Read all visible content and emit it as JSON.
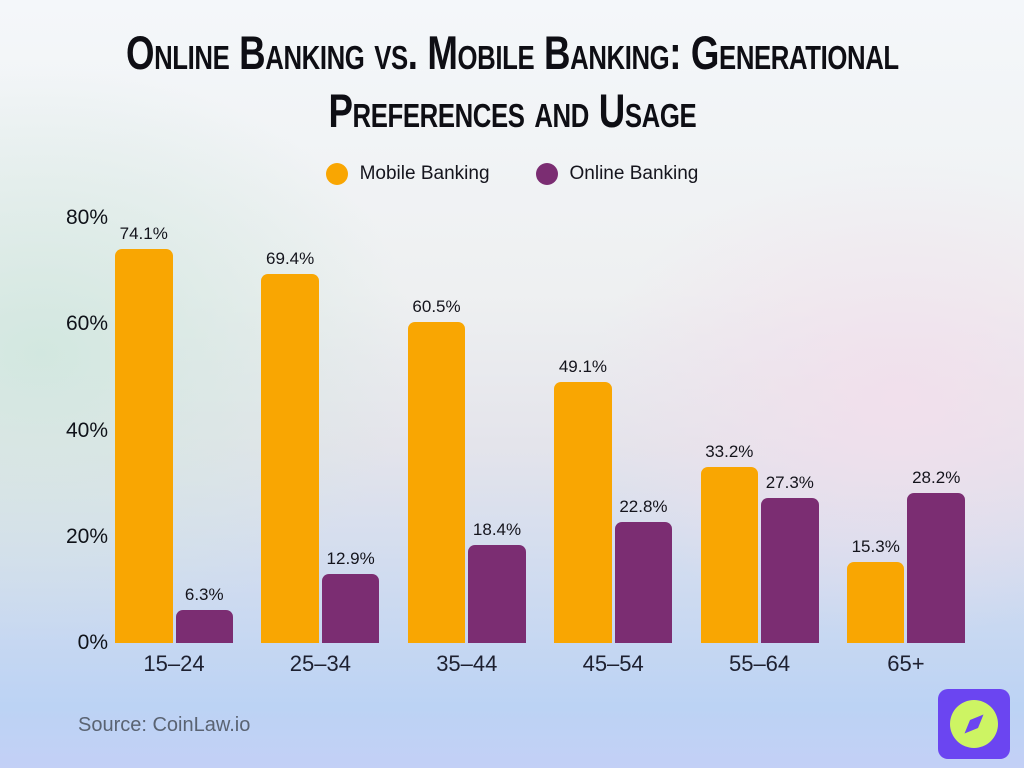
{
  "title": "Online Banking vs. Mobile Banking: Generational\nPreferences and Usage",
  "source": "Source: CoinLaw.io",
  "colors": {
    "mobile": "#F9A602",
    "online": "#7B2D72",
    "logo_bg": "#6B45F1",
    "logo_leaf": "#CDF463"
  },
  "chart_data": {
    "type": "bar",
    "title": "Online Banking vs. Mobile Banking: Generational Preferences and Usage",
    "categories": [
      "15–24",
      "25–34",
      "35–44",
      "45–54",
      "55–64",
      "65+"
    ],
    "series": [
      {
        "name": "Mobile Banking",
        "values": [
          74.1,
          69.4,
          60.5,
          49.1,
          33.2,
          15.3
        ]
      },
      {
        "name": "Online Banking",
        "values": [
          6.3,
          12.9,
          18.4,
          22.8,
          27.3,
          28.2
        ]
      }
    ],
    "value_suffix": "%",
    "ylim": [
      0,
      80
    ],
    "yticks": [
      0,
      20,
      40,
      60,
      80
    ],
    "ytick_suffix": "%",
    "grid": false,
    "legend_position": "top"
  }
}
